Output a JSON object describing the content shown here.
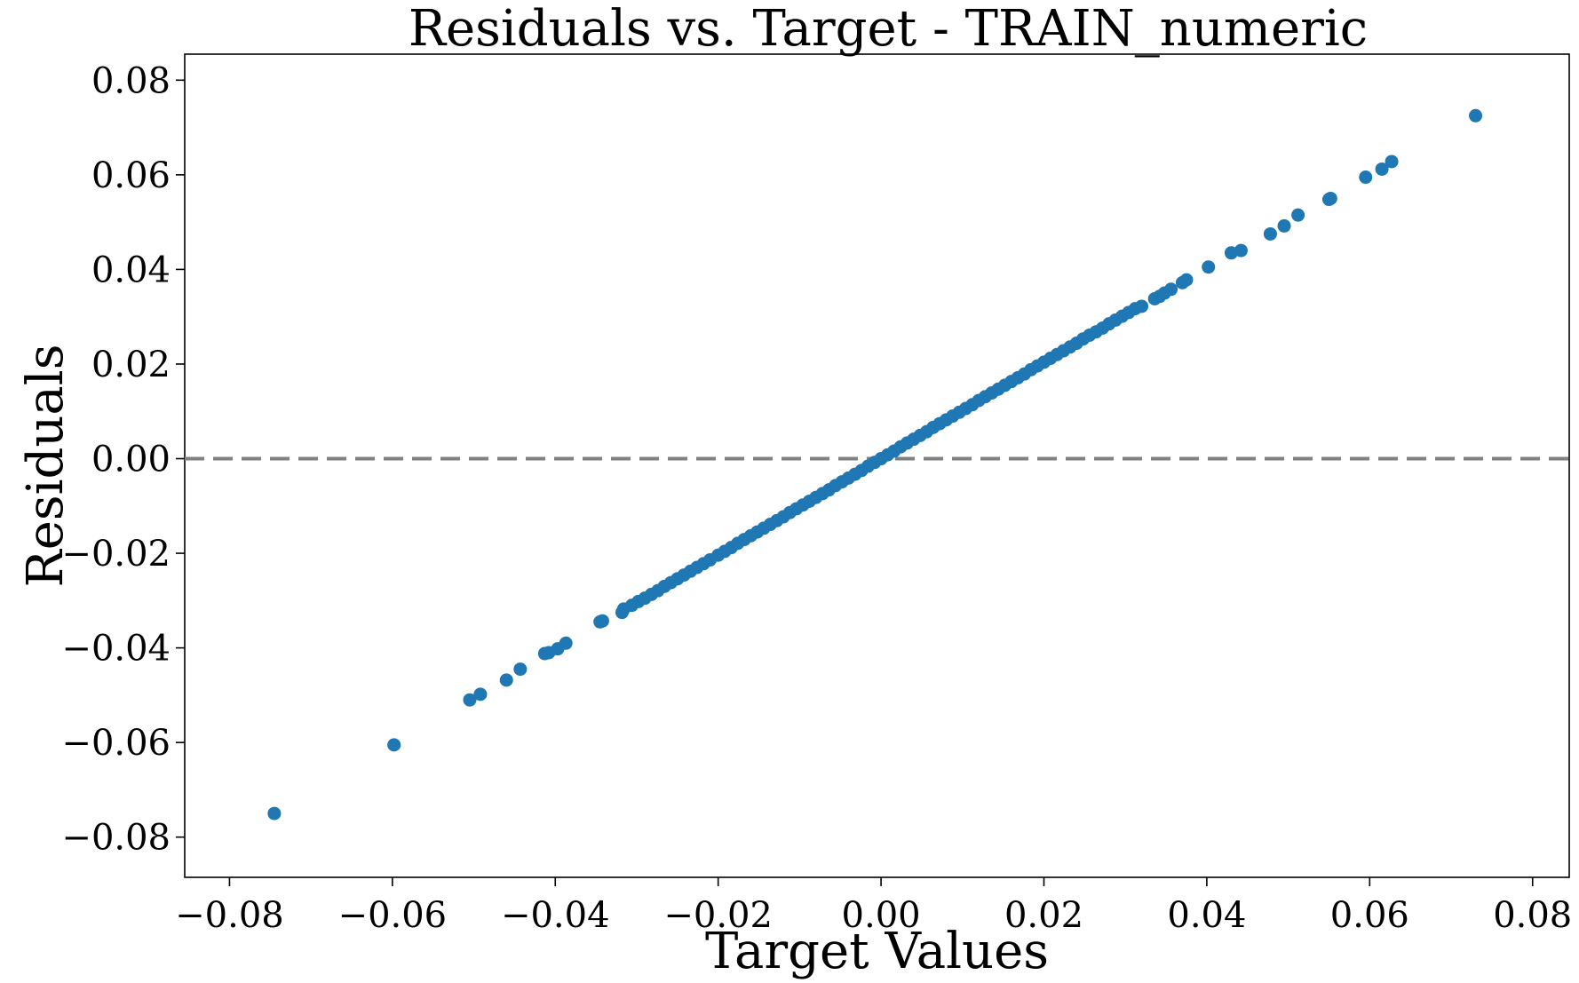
{
  "chart_data": {
    "type": "scatter",
    "title": "Residuals vs. Target - TRAIN_numeric",
    "xlabel": "Target Values",
    "ylabel": "Residuals",
    "xlim": [
      -0.0855,
      0.0845
    ],
    "ylim": [
      -0.0885,
      0.0855
    ],
    "xticks": [
      -0.08,
      -0.06,
      -0.04,
      -0.02,
      0.0,
      0.02,
      0.04,
      0.06,
      0.08
    ],
    "yticks": [
      -0.08,
      -0.06,
      -0.04,
      -0.02,
      0.0,
      0.02,
      0.04,
      0.06,
      0.08
    ],
    "xtick_labels": [
      "−0.08",
      "−0.06",
      "−0.04",
      "−0.02",
      "0.00",
      "0.02",
      "0.04",
      "0.06",
      "0.08"
    ],
    "ytick_labels": [
      "−0.08",
      "−0.06",
      "−0.04",
      "−0.02",
      "0.00",
      "0.02",
      "0.04",
      "0.06",
      "0.08"
    ],
    "grid": false,
    "reference_line": {
      "y": 0.0,
      "style": "dashed",
      "color": "#808080"
    },
    "marker_color": "#1f77b4",
    "points": [
      [
        -0.0745,
        -0.075
      ],
      [
        -0.0598,
        -0.0605
      ],
      [
        -0.0505,
        -0.051
      ],
      [
        -0.0492,
        -0.0498
      ],
      [
        -0.046,
        -0.0468
      ],
      [
        -0.0443,
        -0.0445
      ],
      [
        -0.0413,
        -0.0412
      ],
      [
        -0.0408,
        -0.041
      ],
      [
        -0.0397,
        -0.0402
      ],
      [
        -0.0387,
        -0.039
      ],
      [
        -0.0345,
        -0.0345
      ],
      [
        -0.0342,
        -0.0343
      ],
      [
        -0.0318,
        -0.0325
      ],
      [
        -0.0316,
        -0.0318
      ],
      [
        -0.0306,
        -0.031
      ],
      [
        -0.0298,
        -0.0302
      ],
      [
        -0.029,
        -0.0295
      ],
      [
        -0.0282,
        -0.0287
      ],
      [
        -0.0274,
        -0.0279
      ],
      [
        -0.0266,
        -0.027
      ],
      [
        -0.0258,
        -0.0262
      ],
      [
        -0.025,
        -0.0254
      ],
      [
        -0.0242,
        -0.0246
      ],
      [
        -0.0234,
        -0.0238
      ],
      [
        -0.0226,
        -0.023
      ],
      [
        -0.0218,
        -0.0222
      ],
      [
        -0.021,
        -0.0214
      ],
      [
        -0.02,
        -0.0204
      ],
      [
        -0.0192,
        -0.0196
      ],
      [
        -0.0184,
        -0.0188
      ],
      [
        -0.0176,
        -0.0179
      ],
      [
        -0.0168,
        -0.0171
      ],
      [
        -0.016,
        -0.0163
      ],
      [
        -0.0152,
        -0.0155
      ],
      [
        -0.0144,
        -0.0147
      ],
      [
        -0.0136,
        -0.0139
      ],
      [
        -0.0128,
        -0.0131
      ],
      [
        -0.012,
        -0.0123
      ],
      [
        -0.0112,
        -0.0114
      ],
      [
        -0.0104,
        -0.0106
      ],
      [
        -0.0096,
        -0.0098
      ],
      [
        -0.0088,
        -0.009
      ],
      [
        -0.008,
        -0.0082
      ],
      [
        -0.0072,
        -0.0074
      ],
      [
        -0.0064,
        -0.0066
      ],
      [
        -0.0056,
        -0.0057
      ],
      [
        -0.0048,
        -0.0049
      ],
      [
        -0.004,
        -0.0041
      ],
      [
        -0.0032,
        -0.0033
      ],
      [
        -0.0024,
        -0.0025
      ],
      [
        -0.0016,
        -0.0016
      ],
      [
        -0.0008,
        -0.0008
      ],
      [
        0.0,
        0.0
      ],
      [
        0.0008,
        0.0008
      ],
      [
        0.0016,
        0.0016
      ],
      [
        0.0024,
        0.0025
      ],
      [
        0.0032,
        0.0033
      ],
      [
        0.004,
        0.0041
      ],
      [
        0.0048,
        0.0049
      ],
      [
        0.0056,
        0.0057
      ],
      [
        0.0064,
        0.0066
      ],
      [
        0.0072,
        0.0074
      ],
      [
        0.008,
        0.0082
      ],
      [
        0.0088,
        0.009
      ],
      [
        0.0096,
        0.0098
      ],
      [
        0.0104,
        0.0106
      ],
      [
        0.0112,
        0.0114
      ],
      [
        0.012,
        0.0123
      ],
      [
        0.0128,
        0.0131
      ],
      [
        0.0136,
        0.0139
      ],
      [
        0.0144,
        0.0147
      ],
      [
        0.0152,
        0.0155
      ],
      [
        0.016,
        0.0163
      ],
      [
        0.0168,
        0.0171
      ],
      [
        0.0176,
        0.0179
      ],
      [
        0.0184,
        0.0188
      ],
      [
        0.0192,
        0.0196
      ],
      [
        0.02,
        0.0204
      ],
      [
        0.0208,
        0.0212
      ],
      [
        0.0216,
        0.022
      ],
      [
        0.0224,
        0.0228
      ],
      [
        0.0232,
        0.0236
      ],
      [
        0.024,
        0.0244
      ],
      [
        0.0248,
        0.0253
      ],
      [
        0.0256,
        0.0261
      ],
      [
        0.0264,
        0.0268
      ],
      [
        0.0272,
        0.0276
      ],
      [
        0.028,
        0.0285
      ],
      [
        0.0288,
        0.0293
      ],
      [
        0.0296,
        0.0301
      ],
      [
        0.0304,
        0.0309
      ],
      [
        0.0312,
        0.0317
      ],
      [
        0.032,
        0.0322
      ],
      [
        0.0336,
        0.0338
      ],
      [
        0.0342,
        0.0343
      ],
      [
        0.0348,
        0.035
      ],
      [
        0.0356,
        0.0358
      ],
      [
        0.037,
        0.0372
      ],
      [
        0.0375,
        0.0378
      ],
      [
        0.0402,
        0.0405
      ],
      [
        0.043,
        0.0435
      ],
      [
        0.0442,
        0.044
      ],
      [
        0.0478,
        0.0475
      ],
      [
        0.0495,
        0.0492
      ],
      [
        0.0512,
        0.0515
      ],
      [
        0.055,
        0.0548
      ],
      [
        0.0552,
        0.055
      ],
      [
        0.0595,
        0.0595
      ],
      [
        0.0615,
        0.0612
      ],
      [
        0.0627,
        0.0628
      ],
      [
        0.073,
        0.0725
      ]
    ]
  }
}
